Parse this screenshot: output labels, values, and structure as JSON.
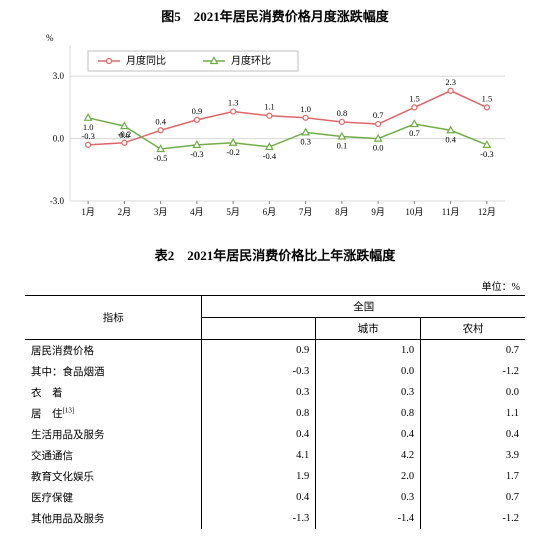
{
  "chart": {
    "title": "图5　2021年居民消费价格月度涨跌幅度",
    "type": "line",
    "y_axis_unit": "%",
    "xticks": [
      "1月",
      "2月",
      "3月",
      "4月",
      "5月",
      "6月",
      "7月",
      "8月",
      "9月",
      "10月",
      "11月",
      "12月"
    ],
    "ylim": [
      -3.0,
      4.5
    ],
    "yticks": [
      -3.0,
      0.0,
      3.0
    ],
    "grid_color": "#d8d8d8",
    "axis_color": "#808080",
    "background_color": "#ffffff",
    "tick_font_size": 9,
    "label_font_size": 10,
    "legend_font_size": 10,
    "legend_border_color": "#bfbfbf",
    "series": [
      {
        "name": "月度同比",
        "color": "#e06666",
        "marker": "circle-open",
        "marker_size": 5,
        "line_width": 1.5,
        "values": [
          -0.3,
          -0.2,
          0.4,
          0.9,
          1.3,
          1.1,
          1.0,
          0.8,
          0.7,
          1.5,
          2.3,
          1.5
        ]
      },
      {
        "name": "月度环比",
        "color": "#70ad47",
        "marker": "triangle-open",
        "marker_size": 5,
        "line_width": 1.5,
        "values": [
          1.0,
          0.6,
          -0.5,
          -0.3,
          -0.2,
          -0.4,
          0.3,
          0.1,
          0.0,
          0.7,
          0.4,
          -0.3
        ]
      }
    ]
  },
  "table": {
    "title": "表2　2021年居民消费价格比上年涨跌幅度",
    "unit": "单位：%",
    "header": {
      "indicator": "指标",
      "national": "全国",
      "urban": "城市",
      "rural": "农村"
    },
    "rows": [
      {
        "label": "居民消费价格",
        "indent": 0,
        "national": "0.9",
        "urban": "1.0",
        "rural": "0.7"
      },
      {
        "label": "其中：食品烟酒",
        "indent": 1,
        "national": "-0.3",
        "urban": "0.0",
        "rural": "-1.2"
      },
      {
        "label": "衣　着",
        "indent": 2,
        "national": "0.3",
        "urban": "0.3",
        "rural": "0.0"
      },
      {
        "label": "居　住",
        "sup": "[13]",
        "indent": 2,
        "national": "0.8",
        "urban": "0.8",
        "rural": "1.1"
      },
      {
        "label": "生活用品及服务",
        "indent": 2,
        "national": "0.4",
        "urban": "0.4",
        "rural": "0.4"
      },
      {
        "label": "交通通信",
        "indent": 2,
        "national": "4.1",
        "urban": "4.2",
        "rural": "3.9"
      },
      {
        "label": "教育文化娱乐",
        "indent": 2,
        "national": "1.9",
        "urban": "2.0",
        "rural": "1.7"
      },
      {
        "label": "医疗保健",
        "indent": 2,
        "national": "0.4",
        "urban": "0.3",
        "rural": "0.7"
      },
      {
        "label": "其他用品及服务",
        "indent": 2,
        "national": "-1.3",
        "urban": "-1.4",
        "rural": "-1.2"
      }
    ]
  }
}
